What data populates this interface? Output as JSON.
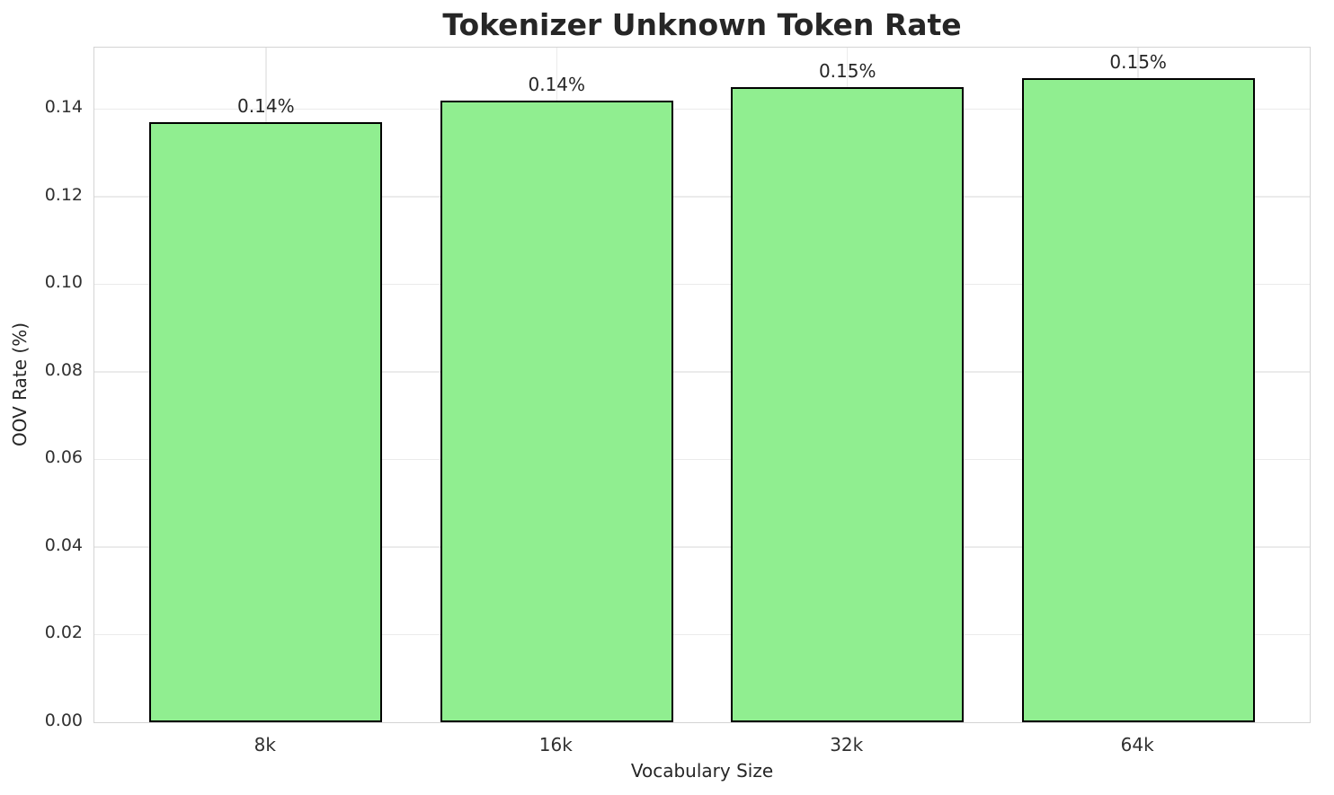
{
  "chart_data": {
    "type": "bar",
    "title": "Tokenizer Unknown Token Rate",
    "xlabel": "Vocabulary Size",
    "ylabel": "OOV Rate (%)",
    "categories": [
      "8k",
      "16k",
      "32k",
      "64k"
    ],
    "values": [
      0.137,
      0.142,
      0.145,
      0.147
    ],
    "bar_labels": [
      "0.14%",
      "0.14%",
      "0.15%",
      "0.15%"
    ],
    "yticks": [
      0,
      0.02,
      0.04,
      0.06,
      0.08,
      0.1,
      0.12,
      0.14
    ],
    "ytick_labels": [
      "0.00",
      "0.02",
      "0.04",
      "0.06",
      "0.08",
      "0.10",
      "0.12",
      "0.14"
    ],
    "ylim": [
      0,
      0.154
    ],
    "grid": true,
    "legend_position": "none",
    "bar_color": "#90EE90",
    "bar_edge_color": "#000000"
  },
  "colors": {
    "background": "#ffffff",
    "grid": "#ebebeb",
    "spine": "#d4d4d4",
    "text": "#262626"
  }
}
